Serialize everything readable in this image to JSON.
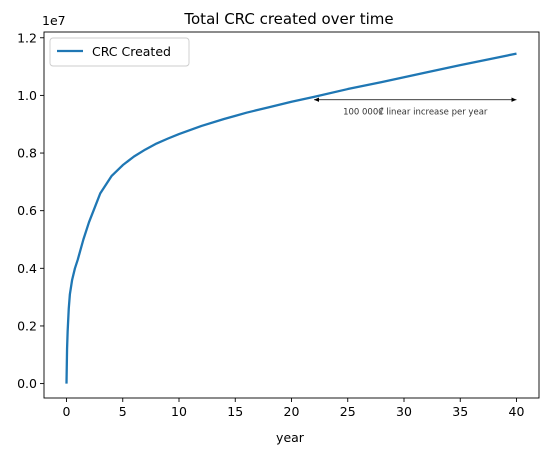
{
  "chart_data": {
    "type": "line",
    "title": "Total CRC created over time",
    "xlabel": "year",
    "ylabel": "",
    "offset_label": "1e7",
    "xlim": [
      -2,
      42
    ],
    "ylim": [
      -0.05,
      1.22
    ],
    "x_ticks": [
      0,
      5,
      10,
      15,
      20,
      25,
      30,
      35,
      40
    ],
    "x_tick_labels": [
      "0",
      "5",
      "10",
      "15",
      "20",
      "25",
      "30",
      "35",
      "40"
    ],
    "y_ticks": [
      0.0,
      0.2,
      0.4,
      0.6,
      0.8,
      1.0,
      1.2
    ],
    "y_tick_labels": [
      "0.0",
      "0.2",
      "0.4",
      "0.6",
      "0.8",
      "1.0",
      "1.2"
    ],
    "grid": false,
    "legend": {
      "placement": "top-left",
      "entries": [
        "CRC Created"
      ]
    },
    "series": [
      {
        "name": "CRC Created",
        "color": "#1f77b4",
        "x": [
          0,
          0.05,
          0.1,
          0.2,
          0.3,
          0.5,
          0.75,
          1,
          1.5,
          2,
          2.5,
          3,
          4,
          5,
          6,
          7,
          8,
          9,
          10,
          12,
          14,
          15,
          16,
          18,
          20,
          22,
          25,
          28,
          30,
          32,
          35,
          38,
          40
        ],
        "values": [
          0,
          0.12,
          0.18,
          0.26,
          0.31,
          0.36,
          0.4,
          0.43,
          0.5,
          0.56,
          0.61,
          0.66,
          0.72,
          0.758,
          0.788,
          0.812,
          0.833,
          0.85,
          0.866,
          0.894,
          0.918,
          0.929,
          0.94,
          0.959,
          0.978,
          0.995,
          1.022,
          1.046,
          1.063,
          1.08,
          1.105,
          1.129,
          1.145
        ]
      }
    ],
    "annotation": {
      "text": "100 000₡ linear increase per year",
      "arrow_x": [
        22,
        40
      ],
      "arrow_y": 0.985
    }
  }
}
